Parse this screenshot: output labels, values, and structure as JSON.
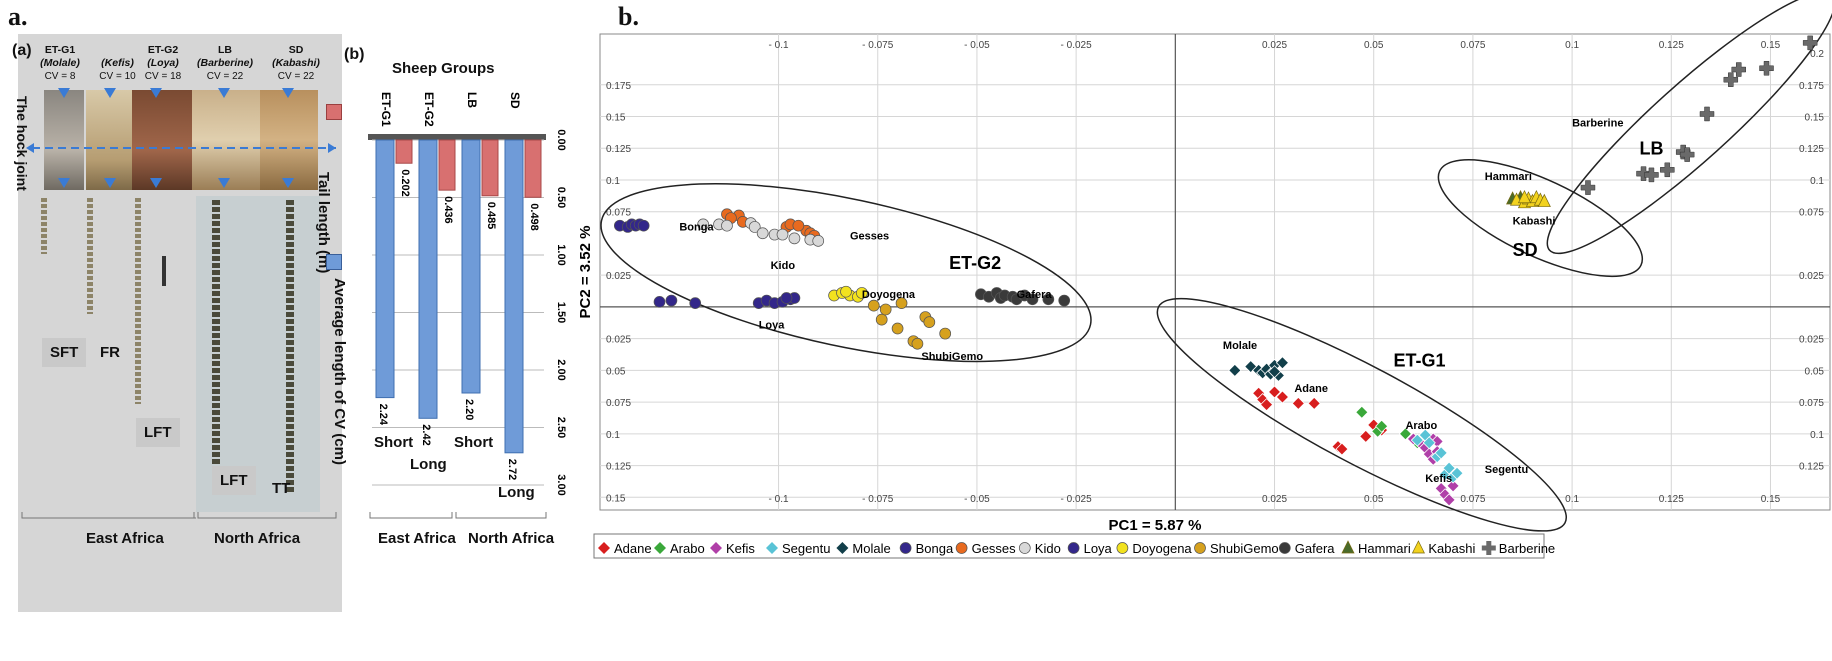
{
  "panel_labels": {
    "a": "a.",
    "b": "b."
  },
  "panel_a": {
    "sub_a": "(a)",
    "sub_b": "(b)",
    "sheep_groups_title": "Sheep Groups",
    "hock_joint": "The hock joint",
    "headers": [
      {
        "group": "ET-G1",
        "breed": "(Molale)",
        "cv": "CV = 8"
      },
      {
        "group": "",
        "breed": "(Kefis)",
        "cv": "CV = 10"
      },
      {
        "group": "ET-G2",
        "breed": "(Loya)",
        "cv": "CV = 18"
      },
      {
        "group": "LB",
        "breed": "(Barberine)",
        "cv": "CV = 22"
      },
      {
        "group": "SD",
        "breed": "(Kabashi)",
        "cv": "CV = 22"
      }
    ],
    "tail_labels": {
      "sft": "SFT",
      "fr": "FR",
      "lft1": "LFT",
      "lft2": "LFT",
      "tt": "TT"
    },
    "legend": {
      "tail": "Tail length (m)",
      "cv": "Average length of CV (cm)"
    },
    "regions": {
      "east": "East Africa",
      "north": "North Africa"
    },
    "length_labels": {
      "short1": "Short",
      "long1": "Long",
      "short2": "Short",
      "long2": "Long"
    },
    "colors": {
      "tail": "#d87070",
      "cv": "#6f9bd8",
      "panel_bg": "#d4d4d4"
    }
  },
  "chart_data": [
    {
      "type": "bar",
      "title": "Sheep Groups",
      "categories": [
        "ET-G1",
        "ET-G2",
        "LB",
        "SD"
      ],
      "series": [
        {
          "name": "Tail length (m)",
          "values": [
            0.202,
            0.436,
            0.485,
            0.498
          ]
        },
        {
          "name": "Average length of CV (cm)",
          "values": [
            2.24,
            2.42,
            2.2,
            2.72
          ]
        }
      ],
      "value_labels": {
        "tail": [
          "0.202",
          "0.436",
          "0.485",
          "0.498"
        ],
        "cv": [
          "2.24",
          "2.42",
          "2.20",
          "2.72"
        ]
      },
      "ticks": [
        "0.00",
        "0.50",
        "1.00",
        "1.50",
        "2.00",
        "2.50",
        "3.00"
      ],
      "ylim": [
        0,
        3
      ],
      "orientation": "rotated-90"
    },
    {
      "type": "scatter",
      "xlabel": "PC1 = 5.87 %",
      "ylabel": "PC2 = 3.52 %",
      "xlim": [
        -0.145,
        0.165
      ],
      "ylim": [
        -0.16,
        0.215
      ],
      "x_ticks": [
        -0.1,
        -0.075,
        -0.05,
        -0.025,
        0.025,
        0.05,
        0.075,
        0.1,
        0.125,
        0.15
      ],
      "x_tick_labels": [
        "- 0.1",
        "- 0.075",
        "- 0.05",
        "- 0.025",
        "0.025",
        "0.05",
        "0.075",
        "0.1",
        "0.125",
        "0.15"
      ],
      "y_ticks": [
        0.175,
        0.15,
        0.125,
        0.1,
        0.075,
        0.025,
        -0.025,
        -0.05,
        -0.075,
        -0.1,
        -0.125,
        -0.15
      ],
      "y_tick_labels": [
        "0.175",
        "0.15",
        "0.125",
        "0.1",
        "0.075",
        "0.025",
        "0.025",
        "0.05",
        "0.075",
        "0.1",
        "0.125",
        "0.15"
      ],
      "right_y_tick_labels": [
        "0.2",
        "0.175",
        "0.15",
        "0.125",
        "0.1",
        "0.075",
        "0.025",
        "0.025",
        "0.05",
        "0.075",
        "0.1",
        "0.125"
      ],
      "right_y_ticks": [
        0.2,
        0.175,
        0.15,
        0.125,
        0.1,
        0.075,
        0.025,
        -0.025,
        -0.05,
        -0.075,
        -0.1,
        -0.125
      ],
      "grid": true,
      "legend_position": "bottom",
      "group_labels": [
        {
          "text": "ET-G2",
          "x": -0.057,
          "y": 0.03
        },
        {
          "text": "ET-G1",
          "x": 0.055,
          "y": -0.047
        },
        {
          "text": "SD",
          "x": 0.085,
          "y": 0.04
        },
        {
          "text": "LB",
          "x": 0.117,
          "y": 0.12
        }
      ],
      "breed_labels": [
        {
          "text": "Bonga",
          "x": -0.125,
          "y": 0.06
        },
        {
          "text": "Gesses",
          "x": -0.082,
          "y": 0.053
        },
        {
          "text": "Kido",
          "x": -0.102,
          "y": 0.03
        },
        {
          "text": "Doyogena",
          "x": -0.079,
          "y": 0.007
        },
        {
          "text": "Gafera",
          "x": -0.04,
          "y": 0.007
        },
        {
          "text": "Loya",
          "x": -0.105,
          "y": -0.017
        },
        {
          "text": "ShubiGemo",
          "x": -0.064,
          "y": -0.042
        },
        {
          "text": "Molale",
          "x": 0.012,
          "y": -0.033
        },
        {
          "text": "Adane",
          "x": 0.03,
          "y": -0.067
        },
        {
          "text": "Arabo",
          "x": 0.058,
          "y": -0.096
        },
        {
          "text": "Segentu",
          "x": 0.078,
          "y": -0.131
        },
        {
          "text": "Kefis",
          "x": 0.063,
          "y": -0.138
        },
        {
          "text": "Hammari",
          "x": 0.078,
          "y": 0.1
        },
        {
          "text": "Kabashi",
          "x": 0.085,
          "y": 0.065
        },
        {
          "text": "Barberine",
          "x": 0.1,
          "y": 0.142
        }
      ],
      "series": [
        {
          "name": "Adane",
          "color": "#d81e1e",
          "marker": "diamond",
          "points": [
            [
              0.021,
              -0.068
            ],
            [
              0.022,
              -0.073
            ],
            [
              0.023,
              -0.077
            ],
            [
              0.025,
              -0.067
            ],
            [
              0.027,
              -0.071
            ],
            [
              0.031,
              -0.076
            ],
            [
              0.035,
              -0.076
            ],
            [
              0.041,
              -0.11
            ],
            [
              0.042,
              -0.112
            ],
            [
              0.048,
              -0.102
            ],
            [
              0.05,
              -0.093
            ],
            [
              0.052,
              -0.097
            ]
          ]
        },
        {
          "name": "Arabo",
          "color": "#3aa83a",
          "marker": "diamond",
          "points": [
            [
              0.047,
              -0.083
            ],
            [
              0.051,
              -0.098
            ],
            [
              0.052,
              -0.094
            ],
            [
              0.058,
              -0.1
            ],
            [
              0.061,
              -0.107
            ],
            [
              0.063,
              -0.105
            ]
          ]
        },
        {
          "name": "Kefis",
          "color": "#b03fa8",
          "marker": "diamond",
          "points": [
            [
              0.06,
              -0.104
            ],
            [
              0.062,
              -0.108
            ],
            [
              0.063,
              -0.111
            ],
            [
              0.064,
              -0.116
            ],
            [
              0.065,
              -0.104
            ],
            [
              0.065,
              -0.12
            ],
            [
              0.066,
              -0.106
            ],
            [
              0.067,
              -0.143
            ],
            [
              0.068,
              -0.148
            ],
            [
              0.069,
              -0.152
            ],
            [
              0.07,
              -0.141
            ],
            [
              0.066,
              -0.114
            ]
          ]
        },
        {
          "name": "Segentu",
          "color": "#59c3d6",
          "marker": "diamond",
          "points": [
            [
              0.061,
              -0.105
            ],
            [
              0.063,
              -0.101
            ],
            [
              0.064,
              -0.107
            ],
            [
              0.066,
              -0.118
            ],
            [
              0.067,
              -0.115
            ],
            [
              0.068,
              -0.132
            ],
            [
              0.069,
              -0.127
            ],
            [
              0.07,
              -0.134
            ],
            [
              0.071,
              -0.131
            ]
          ]
        },
        {
          "name": "Molale",
          "color": "#123f4a",
          "marker": "diamond",
          "points": [
            [
              0.015,
              -0.05
            ],
            [
              0.019,
              -0.047
            ],
            [
              0.021,
              -0.05
            ],
            [
              0.022,
              -0.052
            ],
            [
              0.023,
              -0.049
            ],
            [
              0.024,
              -0.053
            ],
            [
              0.025,
              -0.046
            ],
            [
              0.026,
              -0.054
            ],
            [
              0.027,
              -0.044
            ],
            [
              0.025,
              -0.051
            ]
          ]
        },
        {
          "name": "Bonga",
          "color": "#33278a",
          "marker": "circle",
          "points": [
            [
              -0.14,
              0.064
            ],
            [
              -0.138,
              0.063
            ],
            [
              -0.137,
              0.065
            ],
            [
              -0.136,
              0.064
            ],
            [
              -0.135,
              0.065
            ],
            [
              -0.134,
              0.064
            ]
          ]
        },
        {
          "name": "Gesses",
          "color": "#e86a1f",
          "marker": "circle",
          "points": [
            [
              -0.113,
              0.073
            ],
            [
              -0.11,
              0.072
            ],
            [
              -0.112,
              0.07
            ],
            [
              -0.109,
              0.067
            ],
            [
              -0.098,
              0.063
            ],
            [
              -0.097,
              0.065
            ],
            [
              -0.093,
              0.06
            ],
            [
              -0.092,
              0.058
            ],
            [
              -0.091,
              0.056
            ],
            [
              -0.095,
              0.064
            ]
          ]
        },
        {
          "name": "Kido",
          "color": "#d8d8d8",
          "marker": "circle",
          "points": [
            [
              -0.119,
              0.065
            ],
            [
              -0.115,
              0.065
            ],
            [
              -0.113,
              0.064
            ],
            [
              -0.107,
              0.066
            ],
            [
              -0.106,
              0.063
            ],
            [
              -0.104,
              0.058
            ],
            [
              -0.101,
              0.057
            ],
            [
              -0.099,
              0.057
            ],
            [
              -0.096,
              0.054
            ],
            [
              -0.092,
              0.053
            ],
            [
              -0.09,
              0.052
            ]
          ]
        },
        {
          "name": "Loya",
          "color": "#33278a",
          "marker": "circle",
          "points": [
            [
              -0.13,
              0.004
            ],
            [
              -0.127,
              0.005
            ],
            [
              -0.121,
              0.003
            ],
            [
              -0.105,
              0.003
            ],
            [
              -0.103,
              0.005
            ],
            [
              -0.101,
              0.003
            ],
            [
              -0.099,
              0.004
            ],
            [
              -0.097,
              0.006
            ],
            [
              -0.096,
              0.007
            ],
            [
              -0.098,
              0.007
            ]
          ]
        },
        {
          "name": "Doyogena",
          "color": "#f2e21e",
          "marker": "circle",
          "points": [
            [
              -0.086,
              0.009
            ],
            [
              -0.084,
              0.011
            ],
            [
              -0.082,
              0.009
            ],
            [
              -0.08,
              0.008
            ],
            [
              -0.079,
              0.011
            ],
            [
              -0.083,
              0.012
            ]
          ]
        },
        {
          "name": "ShubiGemo",
          "color": "#d6a11e",
          "marker": "circle",
          "points": [
            [
              -0.076,
              0.001
            ],
            [
              -0.074,
              -0.01
            ],
            [
              -0.073,
              -0.002
            ],
            [
              -0.07,
              -0.017
            ],
            [
              -0.066,
              -0.027
            ],
            [
              -0.065,
              -0.029
            ],
            [
              -0.063,
              -0.008
            ],
            [
              -0.062,
              -0.012
            ],
            [
              -0.058,
              -0.021
            ],
            [
              -0.069,
              0.003
            ]
          ]
        },
        {
          "name": "Gafera",
          "color": "#3a3a3a",
          "marker": "circle",
          "points": [
            [
              -0.049,
              0.01
            ],
            [
              -0.047,
              0.008
            ],
            [
              -0.045,
              0.011
            ],
            [
              -0.044,
              0.007
            ],
            [
              -0.043,
              0.009
            ],
            [
              -0.041,
              0.008
            ],
            [
              -0.04,
              0.006
            ],
            [
              -0.038,
              0.009
            ],
            [
              -0.036,
              0.006
            ],
            [
              -0.032,
              0.006
            ],
            [
              -0.028,
              0.005
            ]
          ]
        },
        {
          "name": "Hammari",
          "color": "#4a6b2a",
          "marker": "triangle",
          "points": [
            [
              0.085,
              0.085
            ],
            [
              0.087,
              0.086
            ]
          ]
        },
        {
          "name": "Kabashi",
          "color": "#f2d21e",
          "marker": "triangle",
          "points": [
            [
              0.086,
              0.084
            ],
            [
              0.088,
              0.082
            ],
            [
              0.089,
              0.085
            ],
            [
              0.09,
              0.083
            ],
            [
              0.091,
              0.086
            ],
            [
              0.092,
              0.084
            ],
            [
              0.093,
              0.083
            ],
            [
              0.088,
              0.086
            ]
          ]
        },
        {
          "name": "Barberine",
          "color": "#6a6a6a",
          "marker": "cross",
          "points": [
            [
              0.104,
              0.094
            ],
            [
              0.118,
              0.105
            ],
            [
              0.12,
              0.104
            ],
            [
              0.124,
              0.108
            ],
            [
              0.128,
              0.122
            ],
            [
              0.129,
              0.12
            ],
            [
              0.134,
              0.152
            ],
            [
              0.14,
              0.179
            ],
            [
              0.142,
              0.187
            ],
            [
              0.149,
              0.188
            ],
            [
              0.16,
              0.208
            ]
          ]
        }
      ]
    }
  ]
}
